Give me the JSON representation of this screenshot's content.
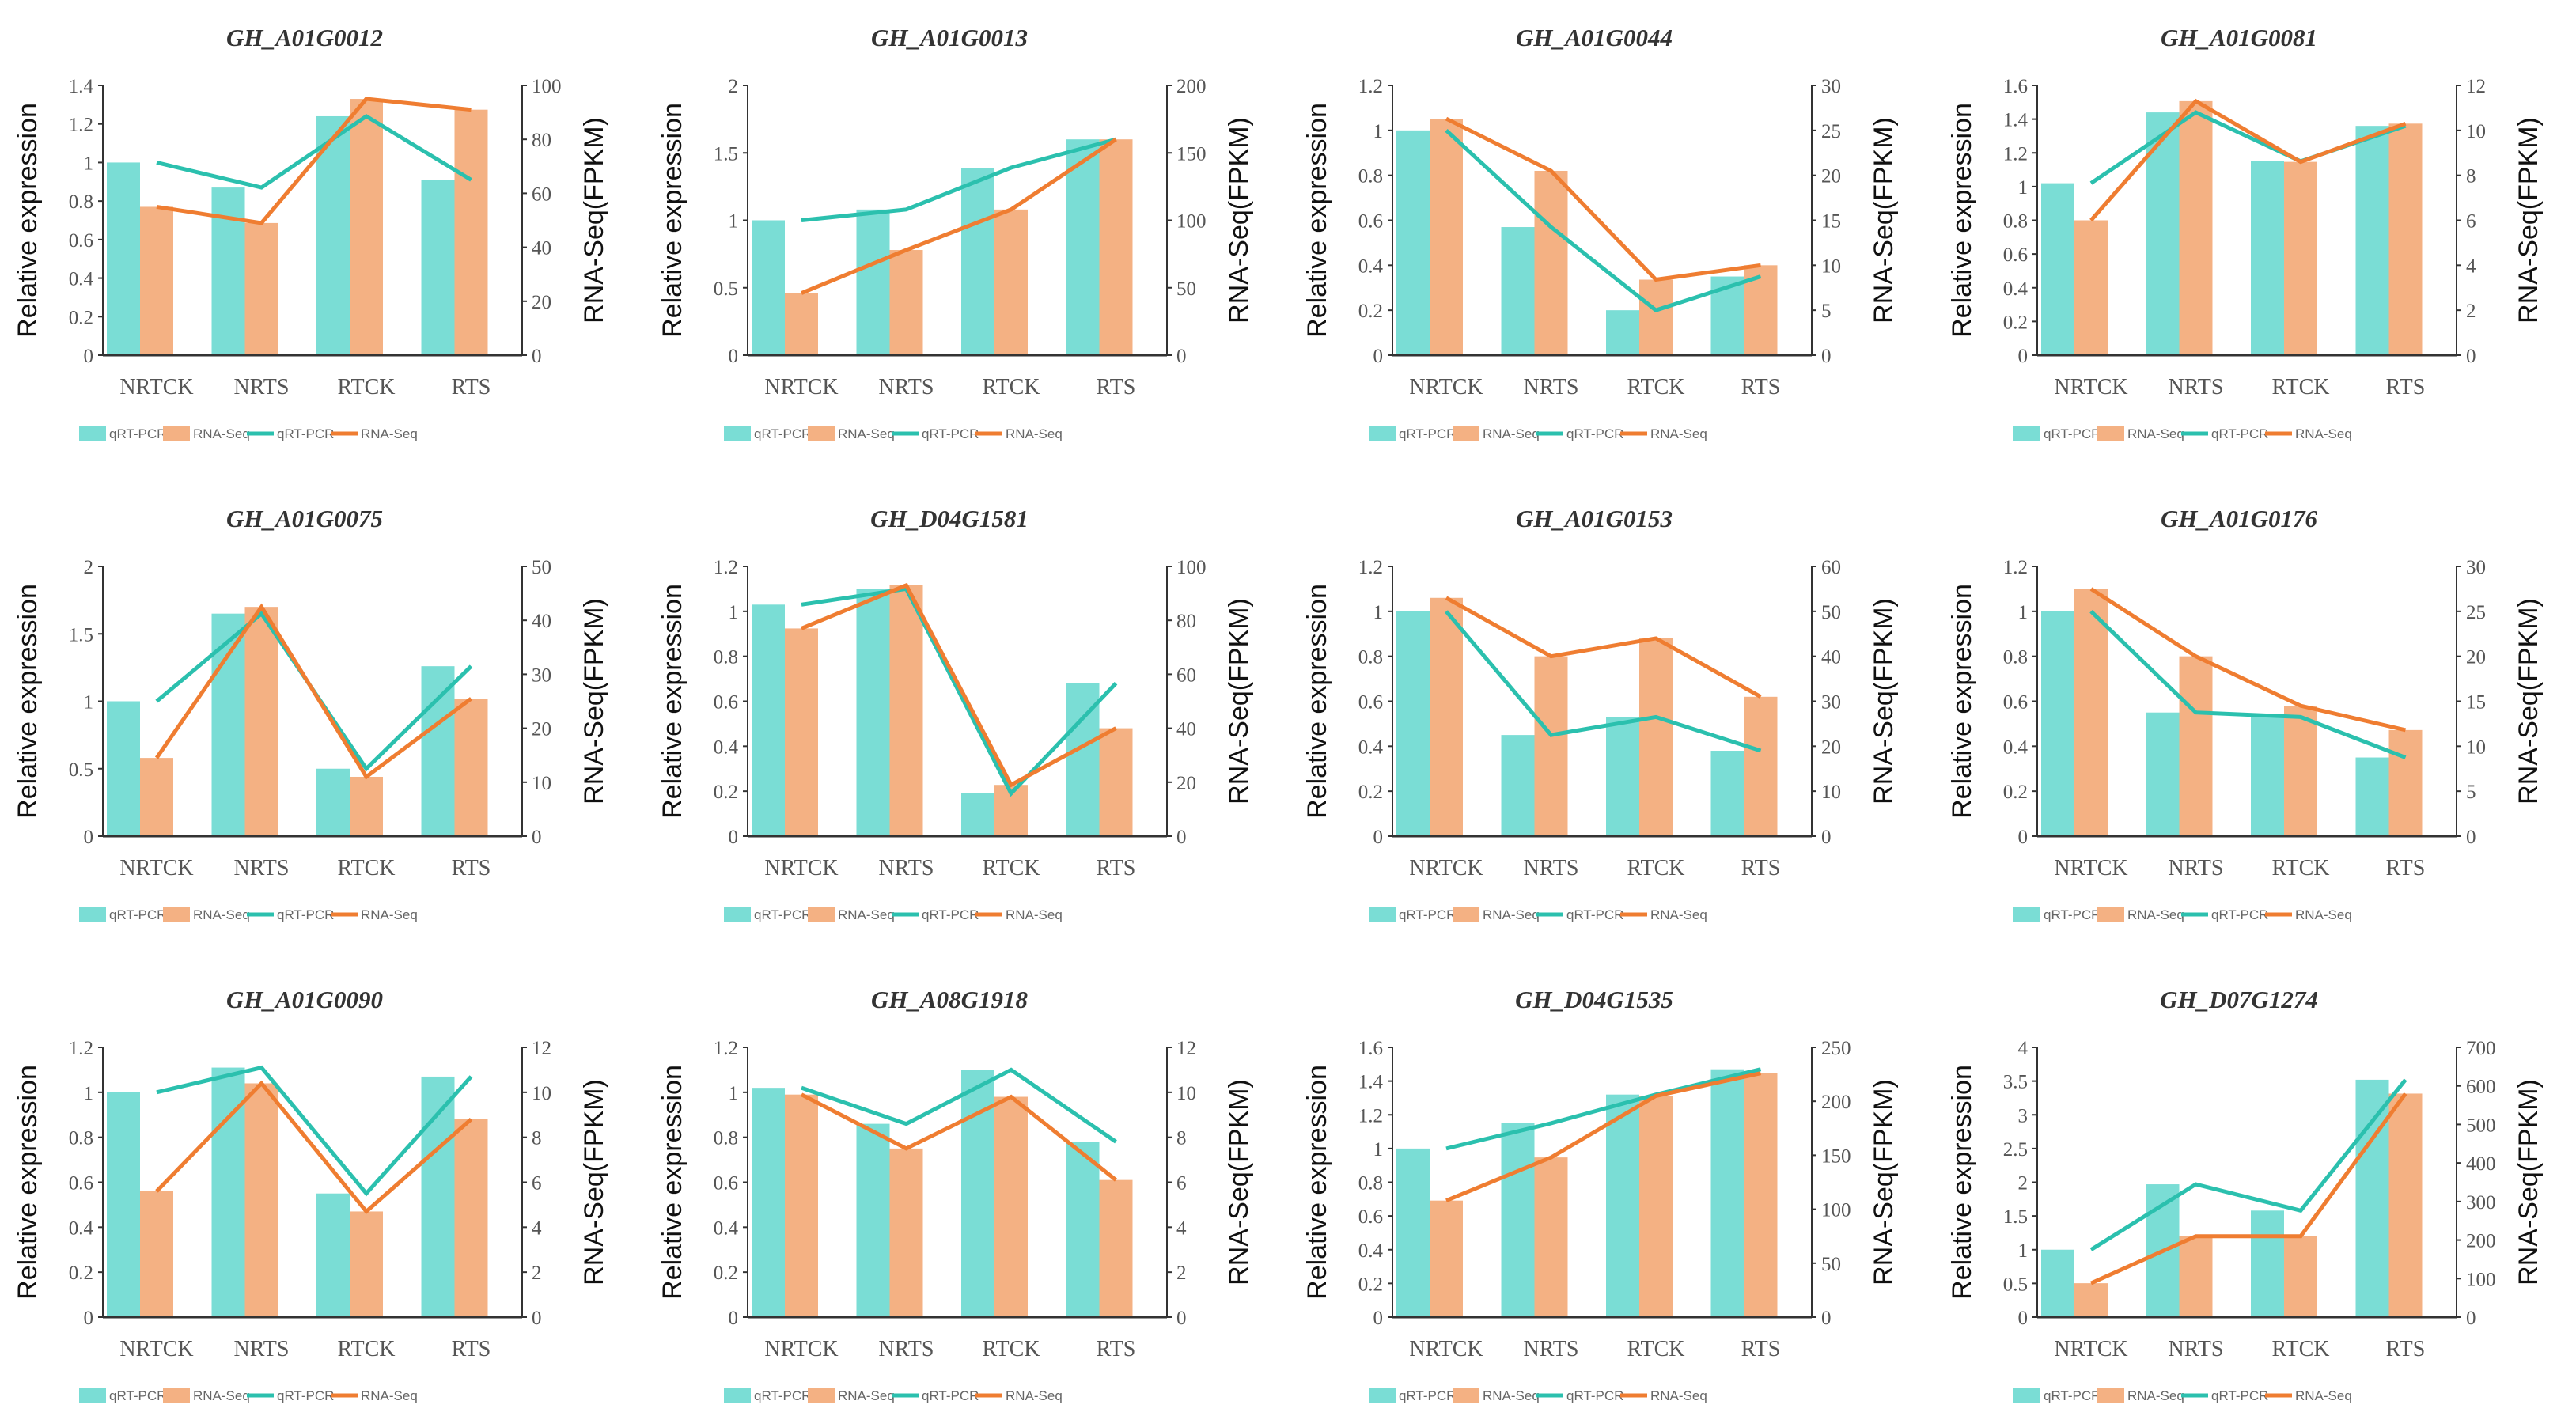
{
  "chart_data": [
    {
      "type": "bar+line",
      "title": "GH_A01G0012",
      "categories": [
        "NRTCK",
        "NRTS",
        "RTCK",
        "RTS"
      ],
      "ylabel": "Relative expression",
      "y2label": "RNA-Seq(FPKM)",
      "ylim": [
        0,
        1.4
      ],
      "y2lim": [
        0,
        100
      ],
      "yticks": [
        "0",
        "0.2",
        "0.4",
        "0.6",
        "0.8",
        "1",
        "1.2",
        "1.4"
      ],
      "y2ticks": [
        "0",
        "20",
        "40",
        "60",
        "80",
        "100"
      ],
      "series": [
        {
          "name": "qRT-PCR",
          "axis": "left",
          "values": [
            1.0,
            0.87,
            1.24,
            0.91
          ]
        },
        {
          "name": "RNA-Seq",
          "axis": "right",
          "values": [
            55,
            49,
            95,
            91
          ]
        }
      ]
    },
    {
      "type": "bar+line",
      "title": "GH_A01G0013",
      "categories": [
        "NRTCK",
        "NRTS",
        "RTCK",
        "RTS"
      ],
      "ylabel": "Relative expression",
      "y2label": "RNA-Seq(FPKM)",
      "ylim": [
        0,
        2
      ],
      "y2lim": [
        0,
        200
      ],
      "yticks": [
        "0",
        "0.5",
        "1",
        "1.5",
        "2"
      ],
      "y2ticks": [
        "0",
        "50",
        "100",
        "150",
        "200"
      ],
      "series": [
        {
          "name": "qRT-PCR",
          "axis": "left",
          "values": [
            1.0,
            1.08,
            1.39,
            1.6
          ]
        },
        {
          "name": "RNA-Seq",
          "axis": "right",
          "values": [
            46,
            78,
            108,
            160
          ]
        }
      ]
    },
    {
      "type": "bar+line",
      "title": "GH_A01G0044",
      "categories": [
        "NRTCK",
        "NRTS",
        "RTCK",
        "RTS"
      ],
      "ylabel": "Relative expression",
      "y2label": "RNA-Seq(FPKM)",
      "ylim": [
        0,
        1.2
      ],
      "y2lim": [
        0,
        30
      ],
      "yticks": [
        "0",
        "0.2",
        "0.4",
        "0.6",
        "0.8",
        "1",
        "1.2"
      ],
      "y2ticks": [
        "0",
        "5",
        "10",
        "15",
        "20",
        "25",
        "30"
      ],
      "series": [
        {
          "name": "qRT-PCR",
          "axis": "left",
          "values": [
            1.0,
            0.57,
            0.2,
            0.35
          ]
        },
        {
          "name": "RNA-Seq",
          "axis": "right",
          "values": [
            26.3,
            20.5,
            8.4,
            10
          ]
        }
      ]
    },
    {
      "type": "bar+line",
      "title": "GH_A01G0081",
      "categories": [
        "NRTCK",
        "NRTS",
        "RTCK",
        "RTS"
      ],
      "ylabel": "Relative expression",
      "y2label": "RNA-Seq(FPKM)",
      "ylim": [
        0,
        1.6
      ],
      "y2lim": [
        0,
        12
      ],
      "yticks": [
        "0",
        "0.2",
        "0.4",
        "0.6",
        "0.8",
        "1",
        "1.2",
        "1.4",
        "1.6"
      ],
      "y2ticks": [
        "0",
        "2",
        "4",
        "6",
        "8",
        "10",
        "12"
      ],
      "series": [
        {
          "name": "qRT-PCR",
          "axis": "left",
          "values": [
            1.02,
            1.44,
            1.15,
            1.36
          ]
        },
        {
          "name": "RNA-Seq",
          "axis": "right",
          "values": [
            6.0,
            11.3,
            8.6,
            10.3
          ]
        }
      ]
    },
    {
      "type": "bar+line",
      "title": "GH_A01G0075",
      "categories": [
        "NRTCK",
        "NRTS",
        "RTCK",
        "RTS"
      ],
      "ylabel": "Relative expression",
      "y2label": "RNA-Seq(FPKM)",
      "ylim": [
        0,
        2
      ],
      "y2lim": [
        0,
        50
      ],
      "yticks": [
        "0",
        "0.5",
        "1",
        "1.5",
        "2"
      ],
      "y2ticks": [
        "0",
        "10",
        "20",
        "30",
        "40",
        "50"
      ],
      "series": [
        {
          "name": "qRT-PCR",
          "axis": "left",
          "values": [
            1.0,
            1.65,
            0.5,
            1.26
          ]
        },
        {
          "name": "RNA-Seq",
          "axis": "right",
          "values": [
            14.5,
            42.5,
            11,
            25.5
          ]
        }
      ]
    },
    {
      "type": "bar+line",
      "title": "GH_D04G1581",
      "categories": [
        "NRTCK",
        "NRTS",
        "RTCK",
        "RTS"
      ],
      "ylabel": "Relative expression",
      "y2label": "RNA-Seq(FPKM)",
      "ylim": [
        0,
        1.2
      ],
      "y2lim": [
        0,
        100
      ],
      "yticks": [
        "0",
        "0.2",
        "0.4",
        "0.6",
        "0.8",
        "1",
        "1.2"
      ],
      "y2ticks": [
        "0",
        "20",
        "40",
        "60",
        "80",
        "100"
      ],
      "series": [
        {
          "name": "qRT-PCR",
          "axis": "left",
          "values": [
            1.03,
            1.1,
            0.19,
            0.68
          ]
        },
        {
          "name": "RNA-Seq",
          "axis": "right",
          "values": [
            77,
            93,
            19,
            40
          ]
        }
      ]
    },
    {
      "type": "bar+line",
      "title": "GH_A01G0153",
      "categories": [
        "NRTCK",
        "NRTS",
        "RTCK",
        "RTS"
      ],
      "ylabel": "Relative expression",
      "y2label": "RNA-Seq(FPKM)",
      "ylim": [
        0,
        1.2
      ],
      "y2lim": [
        0,
        60
      ],
      "yticks": [
        "0",
        "0.2",
        "0.4",
        "0.6",
        "0.8",
        "1",
        "1.2"
      ],
      "y2ticks": [
        "0",
        "10",
        "20",
        "30",
        "40",
        "50",
        "60"
      ],
      "series": [
        {
          "name": "qRT-PCR",
          "axis": "left",
          "values": [
            1.0,
            0.45,
            0.53,
            0.38
          ]
        },
        {
          "name": "RNA-Seq",
          "axis": "right",
          "values": [
            53,
            40,
            44,
            31
          ]
        }
      ]
    },
    {
      "type": "bar+line",
      "title": "GH_A01G0176",
      "categories": [
        "NRTCK",
        "NRTS",
        "RTCK",
        "RTS"
      ],
      "ylabel": "Relative expression",
      "y2label": "RNA-Seq(FPKM)",
      "ylim": [
        0,
        1.2
      ],
      "y2lim": [
        0,
        30
      ],
      "yticks": [
        "0",
        "0.2",
        "0.4",
        "0.6",
        "0.8",
        "1",
        "1.2"
      ],
      "y2ticks": [
        "0",
        "5",
        "10",
        "15",
        "20",
        "25",
        "30"
      ],
      "series": [
        {
          "name": "qRT-PCR",
          "axis": "left",
          "values": [
            1.0,
            0.55,
            0.53,
            0.35
          ]
        },
        {
          "name": "RNA-Seq",
          "axis": "right",
          "values": [
            27.5,
            20,
            14.5,
            11.8
          ]
        }
      ]
    },
    {
      "type": "bar+line",
      "title": "GH_A01G0090",
      "categories": [
        "NRTCK",
        "NRTS",
        "RTCK",
        "RTS"
      ],
      "ylabel": "Relative expression",
      "y2label": "RNA-Seq(FPKM)",
      "ylim": [
        0,
        1.2
      ],
      "y2lim": [
        0,
        12
      ],
      "yticks": [
        "0",
        "0.2",
        "0.4",
        "0.6",
        "0.8",
        "1",
        "1.2"
      ],
      "y2ticks": [
        "0",
        "2",
        "4",
        "6",
        "8",
        "10",
        "12"
      ],
      "series": [
        {
          "name": "qRT-PCR",
          "axis": "left",
          "values": [
            1.0,
            1.11,
            0.55,
            1.07
          ]
        },
        {
          "name": "RNA-Seq",
          "axis": "right",
          "values": [
            5.6,
            10.4,
            4.7,
            8.8
          ]
        }
      ]
    },
    {
      "type": "bar+line",
      "title": "GH_A08G1918",
      "categories": [
        "NRTCK",
        "NRTS",
        "RTCK",
        "RTS"
      ],
      "ylabel": "Relative expression",
      "y2label": "RNA-Seq(FPKM)",
      "ylim": [
        0,
        1.2
      ],
      "y2lim": [
        0,
        12
      ],
      "yticks": [
        "0",
        "0.2",
        "0.4",
        "0.6",
        "0.8",
        "1",
        "1.2"
      ],
      "y2ticks": [
        "0",
        "2",
        "4",
        "6",
        "8",
        "10",
        "12"
      ],
      "series": [
        {
          "name": "qRT-PCR",
          "axis": "left",
          "values": [
            1.02,
            0.86,
            1.1,
            0.78
          ]
        },
        {
          "name": "RNA-Seq",
          "axis": "right",
          "values": [
            9.9,
            7.5,
            9.8,
            6.1
          ]
        }
      ]
    },
    {
      "type": "bar+line",
      "title": "GH_D04G1535",
      "categories": [
        "NRTCK",
        "NRTS",
        "RTCK",
        "RTS"
      ],
      "ylabel": "Relative expression",
      "y2label": "RNA-Seq(FPKM)",
      "ylim": [
        0,
        1.6
      ],
      "y2lim": [
        0,
        250
      ],
      "yticks": [
        "0",
        "0.2",
        "0.4",
        "0.6",
        "0.8",
        "1",
        "1.2",
        "1.4",
        "1.6"
      ],
      "y2ticks": [
        "0",
        "50",
        "100",
        "150",
        "200",
        "250"
      ],
      "series": [
        {
          "name": "qRT-PCR",
          "axis": "left",
          "values": [
            1.0,
            1.15,
            1.32,
            1.47
          ]
        },
        {
          "name": "RNA-Seq",
          "axis": "right",
          "values": [
            108,
            148,
            205,
            226
          ]
        }
      ]
    },
    {
      "type": "bar+line",
      "title": "GH_D07G1274",
      "categories": [
        "NRTCK",
        "NRTS",
        "RTCK",
        "RTS"
      ],
      "ylabel": "Relative expression",
      "y2label": "RNA-Seq(FPKM)",
      "ylim": [
        0,
        4
      ],
      "y2lim": [
        0,
        700
      ],
      "yticks": [
        "0",
        "0.5",
        "1",
        "1.5",
        "2",
        "2.5",
        "3",
        "3.5",
        "4"
      ],
      "y2ticks": [
        "0",
        "100",
        "200",
        "300",
        "400",
        "500",
        "600",
        "700"
      ],
      "series": [
        {
          "name": "qRT-PCR",
          "axis": "left",
          "values": [
            1.0,
            1.97,
            1.58,
            3.52
          ]
        },
        {
          "name": "RNA-Seq",
          "axis": "right",
          "values": [
            88,
            210,
            210,
            580
          ]
        }
      ]
    }
  ],
  "legend": {
    "items": [
      "qRT-PCR",
      "RNA-Seq",
      "qRT-PCR",
      "RNA-Seq"
    ],
    "position": "bottom"
  },
  "colors": {
    "qrt_bar": "#7ADDD5",
    "rna_bar": "#F4B183",
    "qrt_line": "#2BC0AE",
    "rna_line": "#EF7D31"
  }
}
